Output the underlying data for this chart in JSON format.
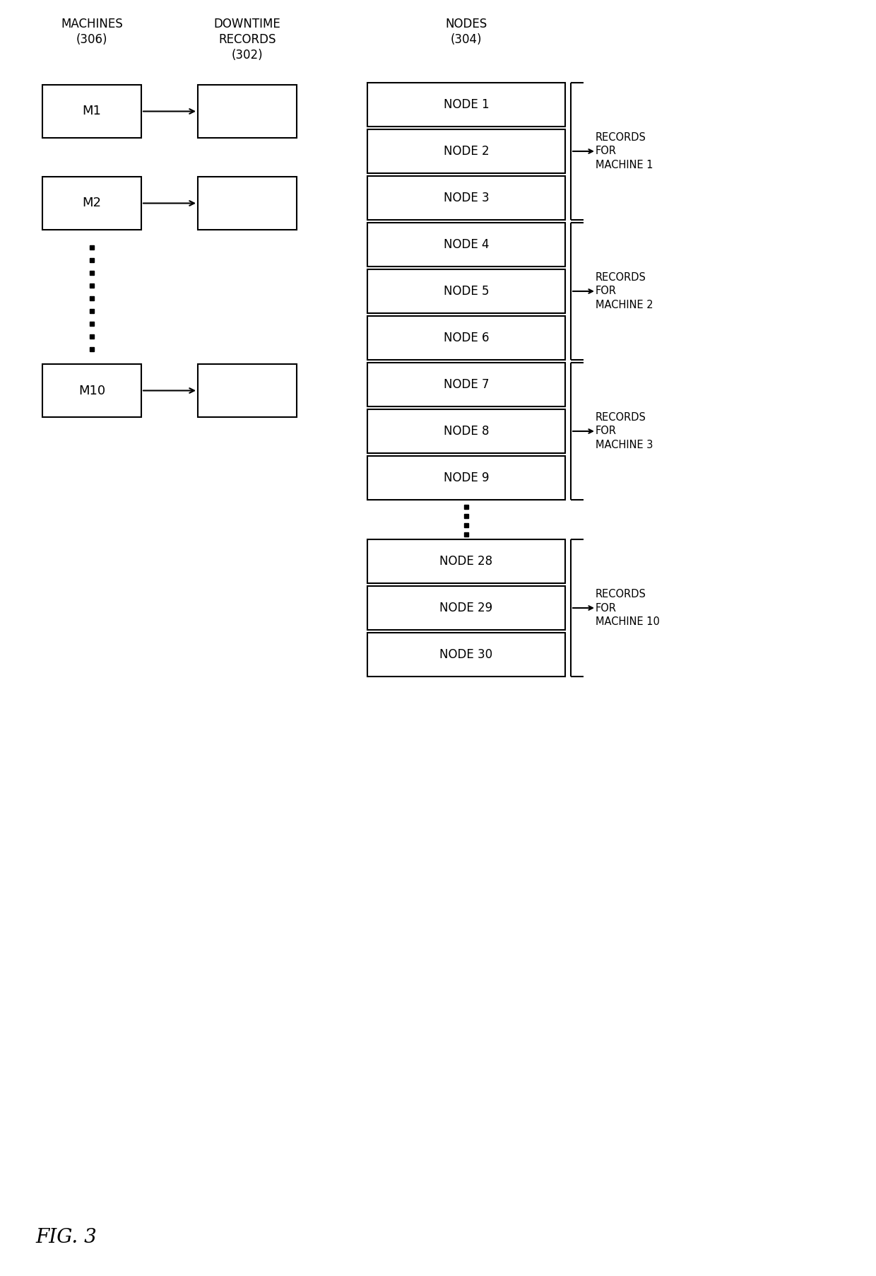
{
  "bg_color": "#ffffff",
  "fig_width": 12.4,
  "fig_height": 18.05,
  "machines_label": "MACHINES\n(306)",
  "downtime_label": "DOWNTIME\nRECORDS\n(302)",
  "nodes_label": "NODES\n(304)",
  "fig3_label": "FIG. 3",
  "machines": [
    "M1",
    "M2",
    "M10"
  ],
  "nodes": [
    "NODE 1",
    "NODE 2",
    "NODE 3",
    "NODE 4",
    "NODE 5",
    "NODE 6",
    "NODE 7",
    "NODE 8",
    "NODE 9",
    "NODE 28",
    "NODE 29",
    "NODE 30"
  ],
  "node_groups": [
    {
      "indices": [
        0,
        1,
        2
      ],
      "label": "RECORDS\nFOR\nMACHINE 1"
    },
    {
      "indices": [
        3,
        4,
        5
      ],
      "label": "RECORDS\nFOR\nMACHINE 2"
    },
    {
      "indices": [
        6,
        7,
        8
      ],
      "label": "RECORDS\nFOR\nMACHINE 3"
    },
    {
      "indices": [
        9,
        10,
        11
      ],
      "label": "RECORDS\nFOR\nMACHINE 10"
    }
  ],
  "font_color": "#000000",
  "box_color": "#000000",
  "lw": 1.5
}
